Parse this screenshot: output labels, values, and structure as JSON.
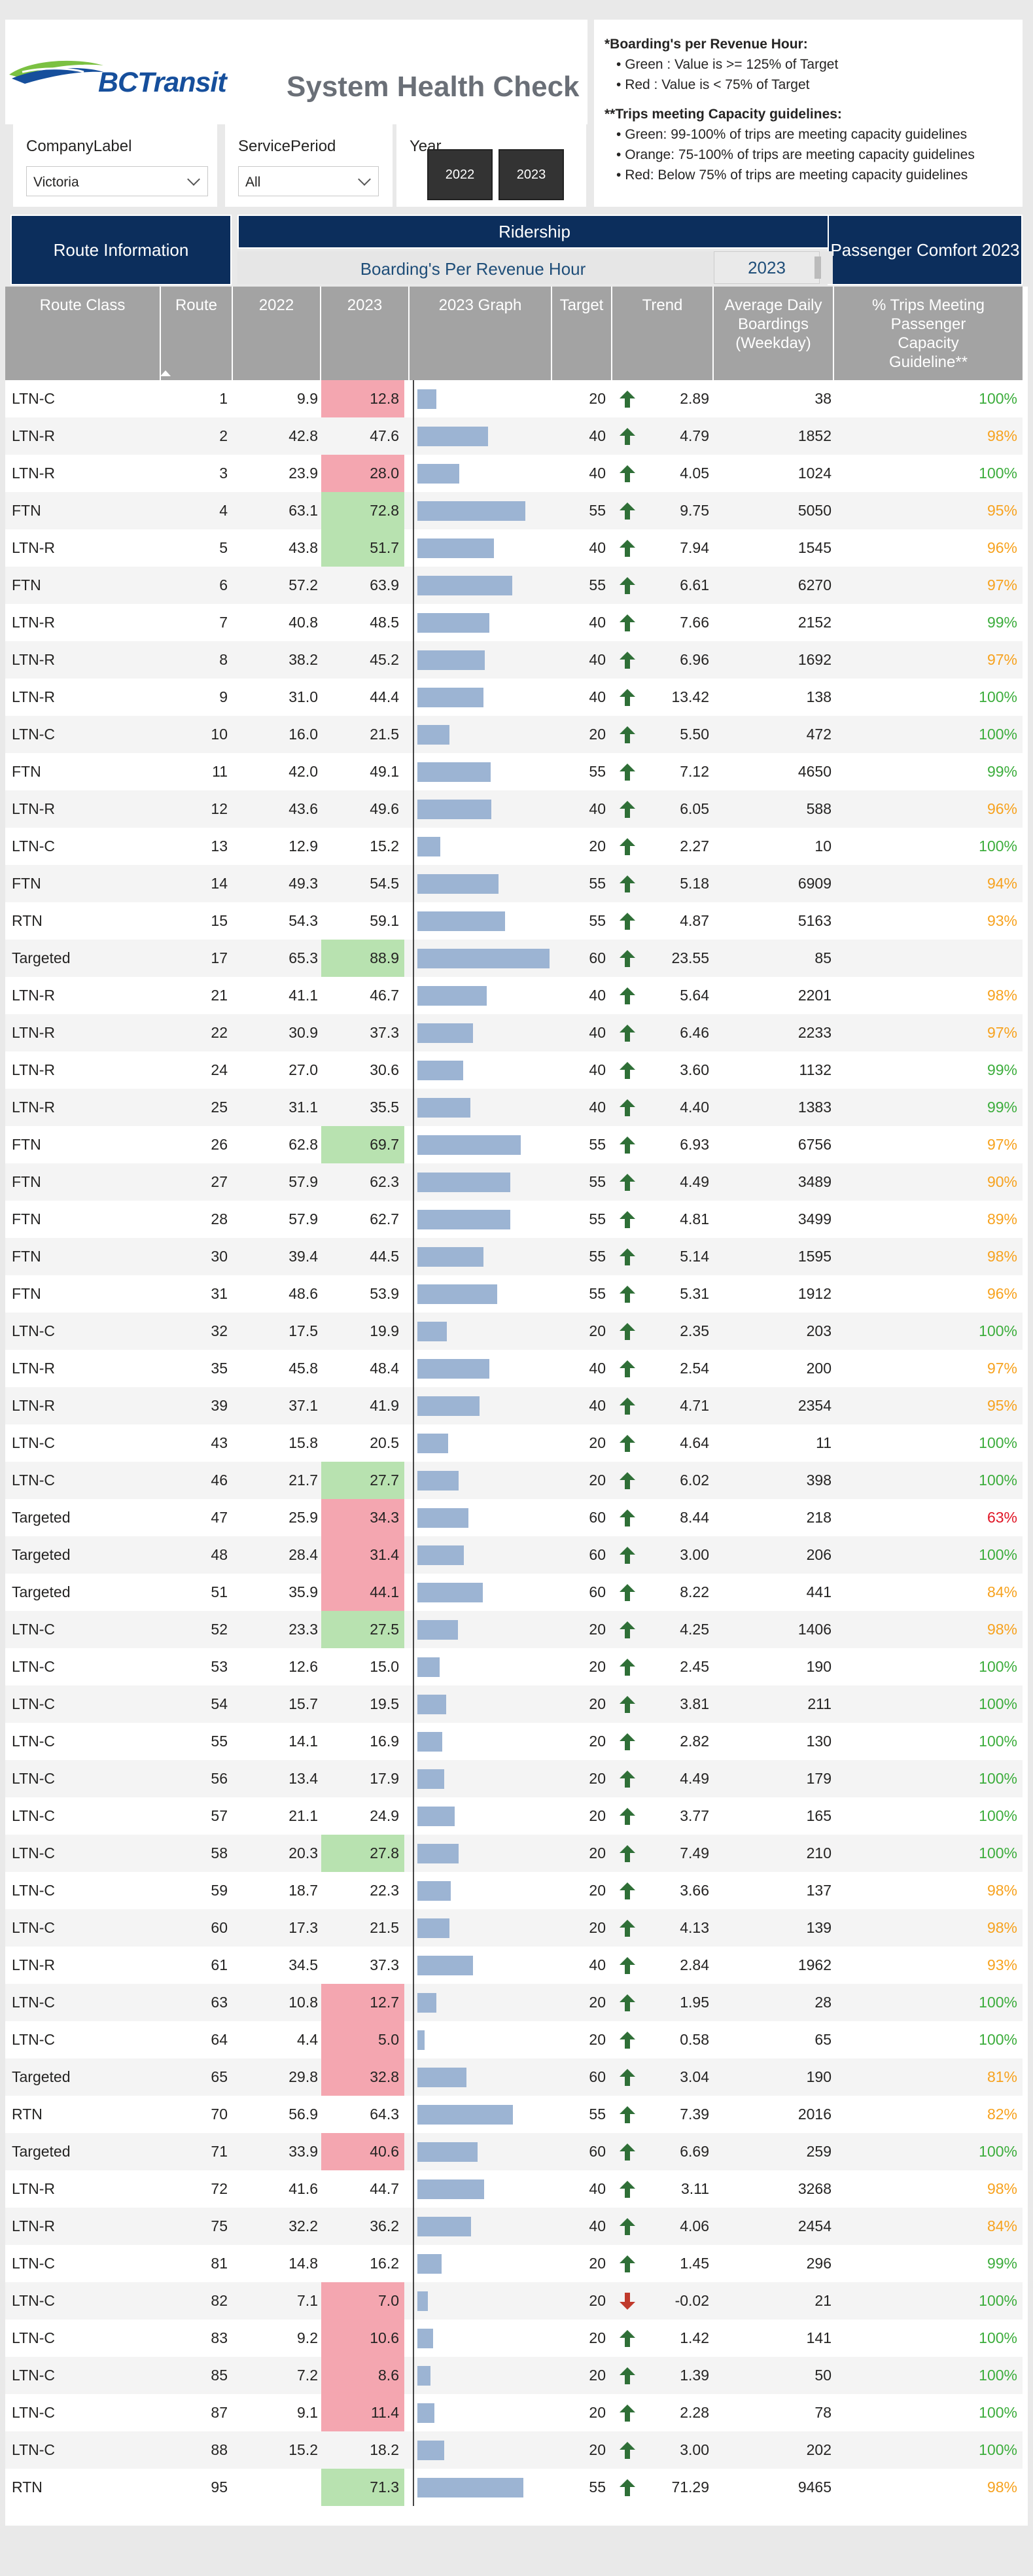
{
  "header": {
    "brand": "BCTransit",
    "title": "System Health Check"
  },
  "notes": {
    "bprh_title": "*Boarding's per Revenue Hour:",
    "bprh_green": "Green : Value is >= 125% of Target",
    "bprh_red": "Red : Value is < 75% of Target",
    "cap_title": "**Trips meeting Capacity guidelines:",
    "cap_green": "Green: 99-100% of trips are meeting capacity guidelines",
    "cap_orange": "Orange: 75-100% of trips are meeting capacity guidelines",
    "cap_red": "Red: Below 75% of trips are meeting capacity guidelines"
  },
  "filters": {
    "company_label": "CompanyLabel",
    "company_value": "Victoria",
    "service_label": "ServicePeriod",
    "service_value": "All",
    "year_label": "Year",
    "year_a": "2022",
    "year_b": "2023"
  },
  "nav": {
    "route_info": "Route Information",
    "ridership": "Ridership",
    "bprh": "Boarding's Per Revenue Hour",
    "bprh_year": "2023",
    "comfort": "Passenger Comfort 2023"
  },
  "columns": {
    "route_class": "Route Class",
    "route": "Route",
    "y2022": "2022",
    "y2023": "2023",
    "graph": "2023 Graph",
    "target": "Target",
    "trend": "Trend",
    "daily": "Average Daily Boardings (Weekday)",
    "pct": "% Trips Meeting Passenger Capacity Guideline**"
  },
  "colors": {
    "navy": "#0c2e5c",
    "bar": "#9cb4d3",
    "highlight_green": "#b8e2b0",
    "highlight_red": "#f4a6b0",
    "trend_up": "#2f6f37",
    "trend_down": "#c0392b",
    "pct_green": "#3cad3c",
    "pct_orange": "#f7a21e",
    "pct_red": "#e01525"
  },
  "rows": [
    {
      "cls": "LTN-C",
      "route": "1",
      "y2022": "9.9",
      "y2023": "12.8",
      "h": "red",
      "g": 12.8,
      "target": "20",
      "dir": "up",
      "trend": "2.89",
      "daily": "38",
      "pct": "100%",
      "pc": "green"
    },
    {
      "cls": "LTN-R",
      "route": "2",
      "y2022": "42.8",
      "y2023": "47.6",
      "h": "",
      "g": 47.6,
      "target": "40",
      "dir": "up",
      "trend": "4.79",
      "daily": "1852",
      "pct": "98%",
      "pc": "orange"
    },
    {
      "cls": "LTN-R",
      "route": "3",
      "y2022": "23.9",
      "y2023": "28.0",
      "h": "red",
      "g": 28.0,
      "target": "40",
      "dir": "up",
      "trend": "4.05",
      "daily": "1024",
      "pct": "100%",
      "pc": "green"
    },
    {
      "cls": "FTN",
      "route": "4",
      "y2022": "63.1",
      "y2023": "72.8",
      "h": "green",
      "g": 72.8,
      "target": "55",
      "dir": "up",
      "trend": "9.75",
      "daily": "5050",
      "pct": "95%",
      "pc": "orange"
    },
    {
      "cls": "LTN-R",
      "route": "5",
      "y2022": "43.8",
      "y2023": "51.7",
      "h": "green",
      "g": 51.7,
      "target": "40",
      "dir": "up",
      "trend": "7.94",
      "daily": "1545",
      "pct": "96%",
      "pc": "orange"
    },
    {
      "cls": "FTN",
      "route": "6",
      "y2022": "57.2",
      "y2023": "63.9",
      "h": "",
      "g": 63.9,
      "target": "55",
      "dir": "up",
      "trend": "6.61",
      "daily": "6270",
      "pct": "97%",
      "pc": "orange"
    },
    {
      "cls": "LTN-R",
      "route": "7",
      "y2022": "40.8",
      "y2023": "48.5",
      "h": "",
      "g": 48.5,
      "target": "40",
      "dir": "up",
      "trend": "7.66",
      "daily": "2152",
      "pct": "99%",
      "pc": "green"
    },
    {
      "cls": "LTN-R",
      "route": "8",
      "y2022": "38.2",
      "y2023": "45.2",
      "h": "",
      "g": 45.2,
      "target": "40",
      "dir": "up",
      "trend": "6.96",
      "daily": "1692",
      "pct": "97%",
      "pc": "orange"
    },
    {
      "cls": "LTN-R",
      "route": "9",
      "y2022": "31.0",
      "y2023": "44.4",
      "h": "",
      "g": 44.4,
      "target": "40",
      "dir": "up",
      "trend": "13.42",
      "daily": "138",
      "pct": "100%",
      "pc": "green"
    },
    {
      "cls": "LTN-C",
      "route": "10",
      "y2022": "16.0",
      "y2023": "21.5",
      "h": "",
      "g": 21.5,
      "target": "20",
      "dir": "up",
      "trend": "5.50",
      "daily": "472",
      "pct": "100%",
      "pc": "green"
    },
    {
      "cls": "FTN",
      "route": "11",
      "y2022": "42.0",
      "y2023": "49.1",
      "h": "",
      "g": 49.1,
      "target": "55",
      "dir": "up",
      "trend": "7.12",
      "daily": "4650",
      "pct": "99%",
      "pc": "green"
    },
    {
      "cls": "LTN-R",
      "route": "12",
      "y2022": "43.6",
      "y2023": "49.6",
      "h": "",
      "g": 49.6,
      "target": "40",
      "dir": "up",
      "trend": "6.05",
      "daily": "588",
      "pct": "96%",
      "pc": "orange"
    },
    {
      "cls": "LTN-C",
      "route": "13",
      "y2022": "12.9",
      "y2023": "15.2",
      "h": "",
      "g": 15.2,
      "target": "20",
      "dir": "up",
      "trend": "2.27",
      "daily": "10",
      "pct": "100%",
      "pc": "green"
    },
    {
      "cls": "FTN",
      "route": "14",
      "y2022": "49.3",
      "y2023": "54.5",
      "h": "",
      "g": 54.5,
      "target": "55",
      "dir": "up",
      "trend": "5.18",
      "daily": "6909",
      "pct": "94%",
      "pc": "orange"
    },
    {
      "cls": "RTN",
      "route": "15",
      "y2022": "54.3",
      "y2023": "59.1",
      "h": "",
      "g": 59.1,
      "target": "55",
      "dir": "up",
      "trend": "4.87",
      "daily": "5163",
      "pct": "93%",
      "pc": "orange"
    },
    {
      "cls": "Targeted",
      "route": "17",
      "y2022": "65.3",
      "y2023": "88.9",
      "h": "green",
      "g": 88.9,
      "target": "60",
      "dir": "up",
      "trend": "23.55",
      "daily": "85",
      "pct": "",
      "pc": ""
    },
    {
      "cls": "LTN-R",
      "route": "21",
      "y2022": "41.1",
      "y2023": "46.7",
      "h": "",
      "g": 46.7,
      "target": "40",
      "dir": "up",
      "trend": "5.64",
      "daily": "2201",
      "pct": "98%",
      "pc": "orange"
    },
    {
      "cls": "LTN-R",
      "route": "22",
      "y2022": "30.9",
      "y2023": "37.3",
      "h": "",
      "g": 37.3,
      "target": "40",
      "dir": "up",
      "trend": "6.46",
      "daily": "2233",
      "pct": "97%",
      "pc": "orange"
    },
    {
      "cls": "LTN-R",
      "route": "24",
      "y2022": "27.0",
      "y2023": "30.6",
      "h": "",
      "g": 30.6,
      "target": "40",
      "dir": "up",
      "trend": "3.60",
      "daily": "1132",
      "pct": "99%",
      "pc": "green"
    },
    {
      "cls": "LTN-R",
      "route": "25",
      "y2022": "31.1",
      "y2023": "35.5",
      "h": "",
      "g": 35.5,
      "target": "40",
      "dir": "up",
      "trend": "4.40",
      "daily": "1383",
      "pct": "99%",
      "pc": "green"
    },
    {
      "cls": "FTN",
      "route": "26",
      "y2022": "62.8",
      "y2023": "69.7",
      "h": "green",
      "g": 69.7,
      "target": "55",
      "dir": "up",
      "trend": "6.93",
      "daily": "6756",
      "pct": "97%",
      "pc": "orange"
    },
    {
      "cls": "FTN",
      "route": "27",
      "y2022": "57.9",
      "y2023": "62.3",
      "h": "",
      "g": 62.3,
      "target": "55",
      "dir": "up",
      "trend": "4.49",
      "daily": "3489",
      "pct": "90%",
      "pc": "orange"
    },
    {
      "cls": "FTN",
      "route": "28",
      "y2022": "57.9",
      "y2023": "62.7",
      "h": "",
      "g": 62.7,
      "target": "55",
      "dir": "up",
      "trend": "4.81",
      "daily": "3499",
      "pct": "89%",
      "pc": "orange"
    },
    {
      "cls": "FTN",
      "route": "30",
      "y2022": "39.4",
      "y2023": "44.5",
      "h": "",
      "g": 44.5,
      "target": "55",
      "dir": "up",
      "trend": "5.14",
      "daily": "1595",
      "pct": "98%",
      "pc": "orange"
    },
    {
      "cls": "FTN",
      "route": "31",
      "y2022": "48.6",
      "y2023": "53.9",
      "h": "",
      "g": 53.9,
      "target": "55",
      "dir": "up",
      "trend": "5.31",
      "daily": "1912",
      "pct": "96%",
      "pc": "orange"
    },
    {
      "cls": "LTN-C",
      "route": "32",
      "y2022": "17.5",
      "y2023": "19.9",
      "h": "",
      "g": 19.9,
      "target": "20",
      "dir": "up",
      "trend": "2.35",
      "daily": "203",
      "pct": "100%",
      "pc": "green"
    },
    {
      "cls": "LTN-R",
      "route": "35",
      "y2022": "45.8",
      "y2023": "48.4",
      "h": "",
      "g": 48.4,
      "target": "40",
      "dir": "up",
      "trend": "2.54",
      "daily": "200",
      "pct": "97%",
      "pc": "orange"
    },
    {
      "cls": "LTN-R",
      "route": "39",
      "y2022": "37.1",
      "y2023": "41.9",
      "h": "",
      "g": 41.9,
      "target": "40",
      "dir": "up",
      "trend": "4.71",
      "daily": "2354",
      "pct": "95%",
      "pc": "orange"
    },
    {
      "cls": "LTN-C",
      "route": "43",
      "y2022": "15.8",
      "y2023": "20.5",
      "h": "",
      "g": 20.5,
      "target": "20",
      "dir": "up",
      "trend": "4.64",
      "daily": "11",
      "pct": "100%",
      "pc": "green"
    },
    {
      "cls": "LTN-C",
      "route": "46",
      "y2022": "21.7",
      "y2023": "27.7",
      "h": "green",
      "g": 27.7,
      "target": "20",
      "dir": "up",
      "trend": "6.02",
      "daily": "398",
      "pct": "100%",
      "pc": "green"
    },
    {
      "cls": "Targeted",
      "route": "47",
      "y2022": "25.9",
      "y2023": "34.3",
      "h": "red",
      "g": 34.3,
      "target": "60",
      "dir": "up",
      "trend": "8.44",
      "daily": "218",
      "pct": "63%",
      "pc": "red"
    },
    {
      "cls": "Targeted",
      "route": "48",
      "y2022": "28.4",
      "y2023": "31.4",
      "h": "red",
      "g": 31.4,
      "target": "60",
      "dir": "up",
      "trend": "3.00",
      "daily": "206",
      "pct": "100%",
      "pc": "green"
    },
    {
      "cls": "Targeted",
      "route": "51",
      "y2022": "35.9",
      "y2023": "44.1",
      "h": "red",
      "g": 44.1,
      "target": "60",
      "dir": "up",
      "trend": "8.22",
      "daily": "441",
      "pct": "84%",
      "pc": "orange"
    },
    {
      "cls": "LTN-C",
      "route": "52",
      "y2022": "23.3",
      "y2023": "27.5",
      "h": "green",
      "g": 27.5,
      "target": "20",
      "dir": "up",
      "trend": "4.25",
      "daily": "1406",
      "pct": "98%",
      "pc": "orange"
    },
    {
      "cls": "LTN-C",
      "route": "53",
      "y2022": "12.6",
      "y2023": "15.0",
      "h": "",
      "g": 15.0,
      "target": "20",
      "dir": "up",
      "trend": "2.45",
      "daily": "190",
      "pct": "100%",
      "pc": "green"
    },
    {
      "cls": "LTN-C",
      "route": "54",
      "y2022": "15.7",
      "y2023": "19.5",
      "h": "",
      "g": 19.5,
      "target": "20",
      "dir": "up",
      "trend": "3.81",
      "daily": "211",
      "pct": "100%",
      "pc": "green"
    },
    {
      "cls": "LTN-C",
      "route": "55",
      "y2022": "14.1",
      "y2023": "16.9",
      "h": "",
      "g": 16.9,
      "target": "20",
      "dir": "up",
      "trend": "2.82",
      "daily": "130",
      "pct": "100%",
      "pc": "green"
    },
    {
      "cls": "LTN-C",
      "route": "56",
      "y2022": "13.4",
      "y2023": "17.9",
      "h": "",
      "g": 17.9,
      "target": "20",
      "dir": "up",
      "trend": "4.49",
      "daily": "179",
      "pct": "100%",
      "pc": "green"
    },
    {
      "cls": "LTN-C",
      "route": "57",
      "y2022": "21.1",
      "y2023": "24.9",
      "h": "",
      "g": 24.9,
      "target": "20",
      "dir": "up",
      "trend": "3.77",
      "daily": "165",
      "pct": "100%",
      "pc": "green"
    },
    {
      "cls": "LTN-C",
      "route": "58",
      "y2022": "20.3",
      "y2023": "27.8",
      "h": "green",
      "g": 27.8,
      "target": "20",
      "dir": "up",
      "trend": "7.49",
      "daily": "210",
      "pct": "100%",
      "pc": "green"
    },
    {
      "cls": "LTN-C",
      "route": "59",
      "y2022": "18.7",
      "y2023": "22.3",
      "h": "",
      "g": 22.3,
      "target": "20",
      "dir": "up",
      "trend": "3.66",
      "daily": "137",
      "pct": "98%",
      "pc": "orange"
    },
    {
      "cls": "LTN-C",
      "route": "60",
      "y2022": "17.3",
      "y2023": "21.5",
      "h": "",
      "g": 21.5,
      "target": "20",
      "dir": "up",
      "trend": "4.13",
      "daily": "139",
      "pct": "98%",
      "pc": "orange"
    },
    {
      "cls": "LTN-R",
      "route": "61",
      "y2022": "34.5",
      "y2023": "37.3",
      "h": "",
      "g": 37.3,
      "target": "40",
      "dir": "up",
      "trend": "2.84",
      "daily": "1962",
      "pct": "93%",
      "pc": "orange"
    },
    {
      "cls": "LTN-C",
      "route": "63",
      "y2022": "10.8",
      "y2023": "12.7",
      "h": "red",
      "g": 12.7,
      "target": "20",
      "dir": "up",
      "trend": "1.95",
      "daily": "28",
      "pct": "100%",
      "pc": "green"
    },
    {
      "cls": "LTN-C",
      "route": "64",
      "y2022": "4.4",
      "y2023": "5.0",
      "h": "red",
      "g": 5.0,
      "target": "20",
      "dir": "up",
      "trend": "0.58",
      "daily": "65",
      "pct": "100%",
      "pc": "green"
    },
    {
      "cls": "Targeted",
      "route": "65",
      "y2022": "29.8",
      "y2023": "32.8",
      "h": "red",
      "g": 32.8,
      "target": "60",
      "dir": "up",
      "trend": "3.04",
      "daily": "190",
      "pct": "81%",
      "pc": "orange"
    },
    {
      "cls": "RTN",
      "route": "70",
      "y2022": "56.9",
      "y2023": "64.3",
      "h": "",
      "g": 64.3,
      "target": "55",
      "dir": "up",
      "trend": "7.39",
      "daily": "2016",
      "pct": "82%",
      "pc": "orange"
    },
    {
      "cls": "Targeted",
      "route": "71",
      "y2022": "33.9",
      "y2023": "40.6",
      "h": "red",
      "g": 40.6,
      "target": "60",
      "dir": "up",
      "trend": "6.69",
      "daily": "259",
      "pct": "100%",
      "pc": "green"
    },
    {
      "cls": "LTN-R",
      "route": "72",
      "y2022": "41.6",
      "y2023": "44.7",
      "h": "",
      "g": 44.7,
      "target": "40",
      "dir": "up",
      "trend": "3.11",
      "daily": "3268",
      "pct": "98%",
      "pc": "orange"
    },
    {
      "cls": "LTN-R",
      "route": "75",
      "y2022": "32.2",
      "y2023": "36.2",
      "h": "",
      "g": 36.2,
      "target": "40",
      "dir": "up",
      "trend": "4.06",
      "daily": "2454",
      "pct": "84%",
      "pc": "orange"
    },
    {
      "cls": "LTN-C",
      "route": "81",
      "y2022": "14.8",
      "y2023": "16.2",
      "h": "",
      "g": 16.2,
      "target": "20",
      "dir": "up",
      "trend": "1.45",
      "daily": "296",
      "pct": "99%",
      "pc": "green"
    },
    {
      "cls": "LTN-C",
      "route": "82",
      "y2022": "7.1",
      "y2023": "7.0",
      "h": "red",
      "g": 7.0,
      "target": "20",
      "dir": "down",
      "trend": "-0.02",
      "daily": "21",
      "pct": "100%",
      "pc": "green"
    },
    {
      "cls": "LTN-C",
      "route": "83",
      "y2022": "9.2",
      "y2023": "10.6",
      "h": "red",
      "g": 10.6,
      "target": "20",
      "dir": "up",
      "trend": "1.42",
      "daily": "141",
      "pct": "100%",
      "pc": "green"
    },
    {
      "cls": "LTN-C",
      "route": "85",
      "y2022": "7.2",
      "y2023": "8.6",
      "h": "red",
      "g": 8.6,
      "target": "20",
      "dir": "up",
      "trend": "1.39",
      "daily": "50",
      "pct": "100%",
      "pc": "green"
    },
    {
      "cls": "LTN-C",
      "route": "87",
      "y2022": "9.1",
      "y2023": "11.4",
      "h": "red",
      "g": 11.4,
      "target": "20",
      "dir": "up",
      "trend": "2.28",
      "daily": "78",
      "pct": "100%",
      "pc": "green"
    },
    {
      "cls": "LTN-C",
      "route": "88",
      "y2022": "15.2",
      "y2023": "18.2",
      "h": "",
      "g": 18.2,
      "target": "20",
      "dir": "up",
      "trend": "3.00",
      "daily": "202",
      "pct": "100%",
      "pc": "green"
    },
    {
      "cls": "RTN",
      "route": "95",
      "y2022": "",
      "y2023": "71.3",
      "h": "green",
      "g": 71.3,
      "target": "55",
      "dir": "up",
      "trend": "71.29",
      "daily": "9465",
      "pct": "98%",
      "pc": "orange"
    }
  ]
}
